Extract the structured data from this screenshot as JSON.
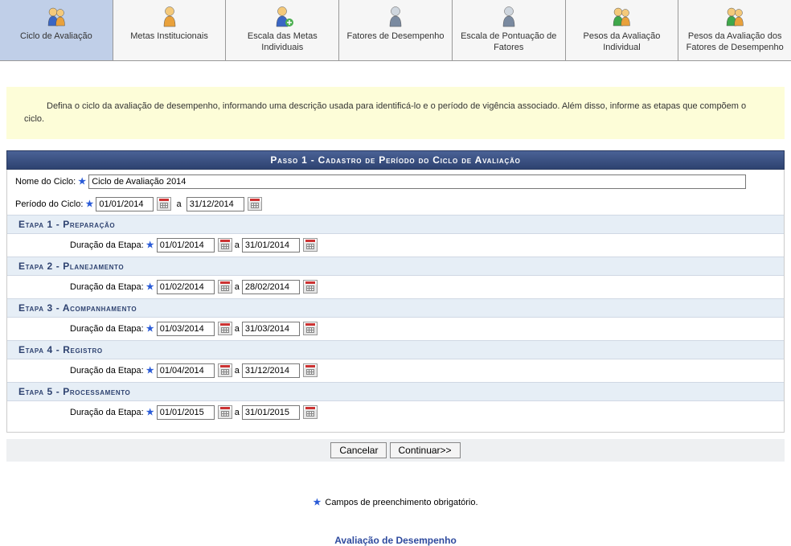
{
  "tabs": [
    {
      "label": "Ciclo de Avaliação",
      "active": true,
      "icon": "duo-yellow-blue"
    },
    {
      "label": "Metas Institucionais",
      "active": false,
      "icon": "single-yellow"
    },
    {
      "label": "Escala das Metas Individuais",
      "active": false,
      "icon": "single-plus"
    },
    {
      "label": "Fatores de Desempenho",
      "active": false,
      "icon": "single-gray"
    },
    {
      "label": "Escala de Pontuação de Fatores",
      "active": false,
      "icon": "single-gray"
    },
    {
      "label": "Pesos da Avaliação Individual",
      "active": false,
      "icon": "duo-green-yellow"
    },
    {
      "label": "Pesos da Avaliação dos Fatores de Desempenho",
      "active": false,
      "icon": "duo-green-yellow"
    }
  ],
  "info_text": "Defina o ciclo da avaliação de desempenho, informando uma descrição usada para identificá-lo e o período de vigência associado. Além disso, informe as etapas que compõem o ciclo.",
  "step_header": "Passo 1 - Cadastro de Período do Ciclo de Avaliação",
  "form": {
    "nome_label": "Nome do Ciclo:",
    "nome_value": "Ciclo de Avaliação 2014",
    "periodo_label": "Período do Ciclo:",
    "periodo_start": "01/01/2014",
    "periodo_end": "31/12/2014",
    "date_separator": "a",
    "duracao_label": "Duração da Etapa:"
  },
  "etapas": [
    {
      "title": "Etapa 1 - Preparação",
      "start": "01/01/2014",
      "end": "31/01/2014"
    },
    {
      "title": "Etapa 2 - Planejamento",
      "start": "01/02/2014",
      "end": "28/02/2014"
    },
    {
      "title": "Etapa 3 - Acompanhamento",
      "start": "01/03/2014",
      "end": "31/03/2014"
    },
    {
      "title": "Etapa 4 - Registro",
      "start": "01/04/2014",
      "end": "31/12/2014"
    },
    {
      "title": "Etapa 5 - Processamento",
      "start": "01/01/2015",
      "end": "31/01/2015"
    }
  ],
  "buttons": {
    "cancel": "Cancelar",
    "continue": "Continuar>>"
  },
  "footer": {
    "required_note": "Campos de preenchimento obrigatório.",
    "link_text": "Avaliação de Desempenho"
  },
  "colors": {
    "tab_active_bg": "#c0cfe8",
    "step_header_bg": "#3b517d",
    "etapa_header_bg": "#e6eef6",
    "etapa_header_color": "#2e4270",
    "info_bg": "#fdfdd8",
    "star_color": "#2a5bd7"
  }
}
